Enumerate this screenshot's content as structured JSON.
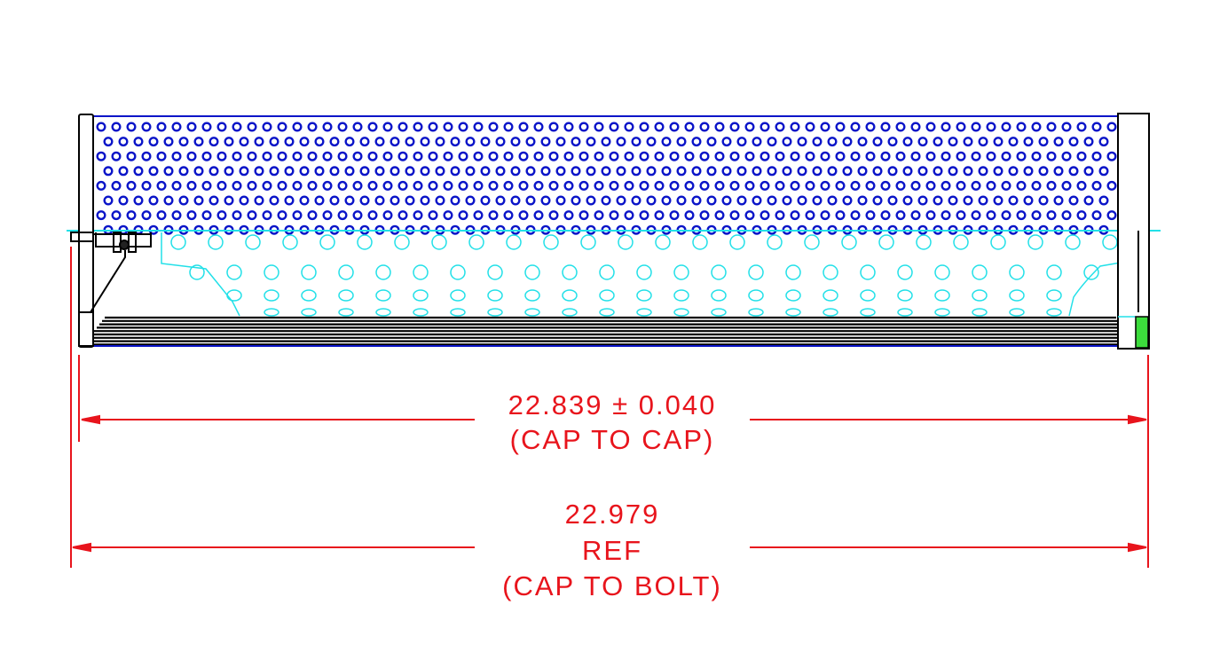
{
  "colors": {
    "outer_perforation": "#0a14c8",
    "inner_perforation": "#22e0e8",
    "dimension": "#e8141c",
    "outline": "#000000",
    "seal": "#3cdc3c"
  },
  "dimensions": {
    "cap_to_cap": {
      "value": "22.839 ± 0.040",
      "note": "(CAP TO CAP)"
    },
    "cap_to_bolt": {
      "value": "22.979",
      "ref": "REF",
      "note": "(CAP TO BOLT)"
    }
  }
}
